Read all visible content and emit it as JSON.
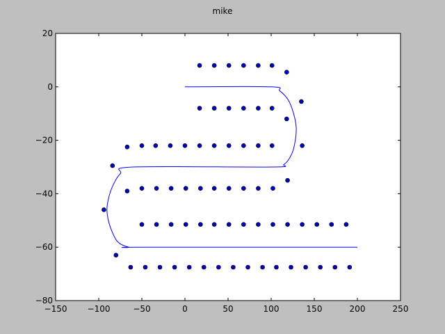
{
  "chart_data": {
    "type": "scatter",
    "title": "mike",
    "xlabel": "",
    "ylabel": "",
    "xlim": [
      -150,
      250
    ],
    "ylim": [
      -80,
      20
    ],
    "xticks": [
      -150,
      -100,
      -50,
      0,
      50,
      100,
      150,
      200,
      250
    ],
    "yticks": [
      20,
      0,
      -20,
      -40,
      -60,
      -80
    ],
    "xtick_labels": [
      "−150",
      "−100",
      "−50",
      "0",
      "50",
      "100",
      "150",
      "200",
      "250"
    ],
    "ytick_labels": [
      "20",
      "0",
      "−20",
      "−40",
      "−60",
      "−80"
    ],
    "grid": false,
    "colors": {
      "line": "#0000ff",
      "marker_fill": "#0000bf",
      "marker_edge": "#000000",
      "figure_bg": "#bfbfbf",
      "axes_bg": "#ffffff"
    },
    "line_path": [
      [
        0,
        0
      ],
      [
        100,
        0
      ],
      [
        110,
        -1.5
      ],
      [
        120,
        -5
      ],
      [
        126,
        -10
      ],
      [
        129,
        -15
      ],
      [
        128,
        -20
      ],
      [
        124,
        -25
      ],
      [
        115,
        -29
      ],
      [
        100,
        -30
      ],
      [
        -60,
        -30
      ],
      [
        -75,
        -32.5
      ],
      [
        -85,
        -38
      ],
      [
        -90,
        -44
      ],
      [
        -90,
        -48
      ],
      [
        -86,
        -53
      ],
      [
        -78,
        -58
      ],
      [
        -65,
        -60
      ],
      [
        -50,
        -60
      ],
      [
        200,
        -60
      ]
    ],
    "points": [
      [
        17,
        8
      ],
      [
        34,
        8
      ],
      [
        51,
        8
      ],
      [
        68,
        8
      ],
      [
        85,
        8
      ],
      [
        101,
        8
      ],
      [
        118,
        5.5
      ],
      [
        135,
        -5.5
      ],
      [
        118,
        -12
      ],
      [
        101,
        -8
      ],
      [
        85,
        -8
      ],
      [
        68,
        -8
      ],
      [
        51,
        -8
      ],
      [
        34,
        -8
      ],
      [
        17,
        -8
      ],
      [
        136,
        -22
      ],
      [
        101,
        -22
      ],
      [
        85,
        -22
      ],
      [
        68,
        -22
      ],
      [
        51,
        -22
      ],
      [
        34,
        -22
      ],
      [
        17,
        -22
      ],
      [
        0,
        -22
      ],
      [
        -17,
        -22
      ],
      [
        -34,
        -22
      ],
      [
        -50,
        -22
      ],
      [
        -67,
        -22.5
      ],
      [
        -84,
        -29.5
      ],
      [
        -94,
        -46
      ],
      [
        -80,
        -63
      ],
      [
        -67,
        -39
      ],
      [
        -50,
        -38
      ],
      [
        -33,
        -38
      ],
      [
        -16,
        -38
      ],
      [
        1,
        -38
      ],
      [
        18,
        -38
      ],
      [
        34,
        -38
      ],
      [
        51,
        -38
      ],
      [
        68,
        -38
      ],
      [
        85,
        -38
      ],
      [
        102,
        -38
      ],
      [
        119,
        -35
      ],
      [
        -50,
        -51.5
      ],
      [
        -33,
        -51.5
      ],
      [
        -16,
        -51.5
      ],
      [
        1,
        -51.5
      ],
      [
        18,
        -51.5
      ],
      [
        34,
        -51.5
      ],
      [
        51,
        -51.5
      ],
      [
        68,
        -51.5
      ],
      [
        85,
        -51.5
      ],
      [
        102,
        -51.5
      ],
      [
        119,
        -51.5
      ],
      [
        136,
        -51.5
      ],
      [
        153,
        -51.5
      ],
      [
        170,
        -51.5
      ],
      [
        187,
        -51.5
      ],
      [
        -63,
        -67.5
      ],
      [
        -46,
        -67.5
      ],
      [
        -29,
        -67.5
      ],
      [
        -12,
        -67.5
      ],
      [
        5,
        -67.5
      ],
      [
        22,
        -67.5
      ],
      [
        39,
        -67.5
      ],
      [
        56,
        -67.5
      ],
      [
        73,
        -67.5
      ],
      [
        90,
        -67.5
      ],
      [
        106,
        -67.5
      ],
      [
        123,
        -67.5
      ],
      [
        140,
        -67.5
      ],
      [
        157,
        -67.5
      ],
      [
        174,
        -67.5
      ],
      [
        191,
        -67.5
      ]
    ]
  }
}
